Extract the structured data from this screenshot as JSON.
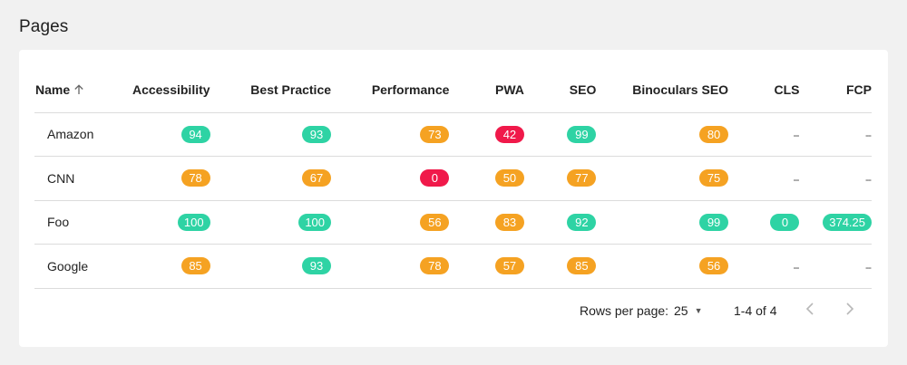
{
  "page": {
    "title": "Pages"
  },
  "colors": {
    "good": "#2ed3a4",
    "average": "#f5a222",
    "poor": "#f0194a"
  },
  "table": {
    "columns": [
      {
        "key": "name",
        "label": "Name",
        "sort": "ascending"
      },
      {
        "key": "accessibility",
        "label": "Accessibility"
      },
      {
        "key": "best_practice",
        "label": "Best Practice"
      },
      {
        "key": "performance",
        "label": "Performance"
      },
      {
        "key": "pwa",
        "label": "PWA"
      },
      {
        "key": "seo",
        "label": "SEO"
      },
      {
        "key": "binoculars_seo",
        "label": "Binoculars SEO"
      },
      {
        "key": "cls",
        "label": "CLS"
      },
      {
        "key": "fcp",
        "label": "FCP"
      }
    ],
    "rows": [
      {
        "name": "Amazon",
        "accessibility": {
          "value": "94",
          "status": "good"
        },
        "best_practice": {
          "value": "93",
          "status": "good"
        },
        "performance": {
          "value": "73",
          "status": "average"
        },
        "pwa": {
          "value": "42",
          "status": "poor"
        },
        "seo": {
          "value": "99",
          "status": "good"
        },
        "binoculars_seo": {
          "value": "80",
          "status": "average"
        },
        "cls": {
          "value": "--",
          "status": "none"
        },
        "fcp": {
          "value": "--",
          "status": "none"
        }
      },
      {
        "name": "CNN",
        "accessibility": {
          "value": "78",
          "status": "average"
        },
        "best_practice": {
          "value": "67",
          "status": "average"
        },
        "performance": {
          "value": "0",
          "status": "poor"
        },
        "pwa": {
          "value": "50",
          "status": "average"
        },
        "seo": {
          "value": "77",
          "status": "average"
        },
        "binoculars_seo": {
          "value": "75",
          "status": "average"
        },
        "cls": {
          "value": "--",
          "status": "none"
        },
        "fcp": {
          "value": "--",
          "status": "none"
        }
      },
      {
        "name": "Foo",
        "accessibility": {
          "value": "100",
          "status": "good"
        },
        "best_practice": {
          "value": "100",
          "status": "good"
        },
        "performance": {
          "value": "56",
          "status": "average"
        },
        "pwa": {
          "value": "83",
          "status": "average"
        },
        "seo": {
          "value": "92",
          "status": "good"
        },
        "binoculars_seo": {
          "value": "99",
          "status": "good"
        },
        "cls": {
          "value": "0",
          "status": "good"
        },
        "fcp": {
          "value": "374.25",
          "status": "good"
        }
      },
      {
        "name": "Google",
        "accessibility": {
          "value": "85",
          "status": "average"
        },
        "best_practice": {
          "value": "93",
          "status": "good"
        },
        "performance": {
          "value": "78",
          "status": "average"
        },
        "pwa": {
          "value": "57",
          "status": "average"
        },
        "seo": {
          "value": "85",
          "status": "average"
        },
        "binoculars_seo": {
          "value": "56",
          "status": "average"
        },
        "cls": {
          "value": "--",
          "status": "none"
        },
        "fcp": {
          "value": "--",
          "status": "none"
        }
      }
    ]
  },
  "pagination": {
    "rows_per_page_label": "Rows per page:",
    "rows_per_page_value": "25",
    "range_text": "1-4 of 4",
    "prev_icon": "chevron-left-icon",
    "next_icon": "chevron-right-icon"
  }
}
